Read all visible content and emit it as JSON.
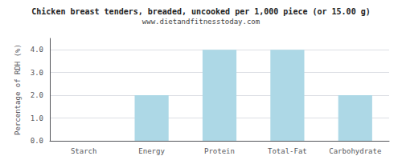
{
  "chart_data": {
    "type": "bar",
    "title": "Chicken breast tenders, breaded, uncooked per 1,000 piece (or 15.00 g)",
    "subtitle": "www.dietandfitnesstoday.com",
    "ylabel": "Percentage of RDH (%)",
    "categories": [
      "Starch",
      "Energy",
      "Protein",
      "Total-Fat",
      "Carbohydrate"
    ],
    "values": [
      0.0,
      2.0,
      4.0,
      4.0,
      2.0
    ],
    "color": "#add8e6",
    "ylim": [
      0,
      4.5
    ],
    "yticks": [
      {
        "value": 0,
        "label": "0.0"
      },
      {
        "value": 1,
        "label": "1.0"
      },
      {
        "value": 2,
        "label": "2.0"
      },
      {
        "value": 3,
        "label": "3.0"
      },
      {
        "value": 4,
        "label": "4.0"
      }
    ],
    "grid": true
  }
}
